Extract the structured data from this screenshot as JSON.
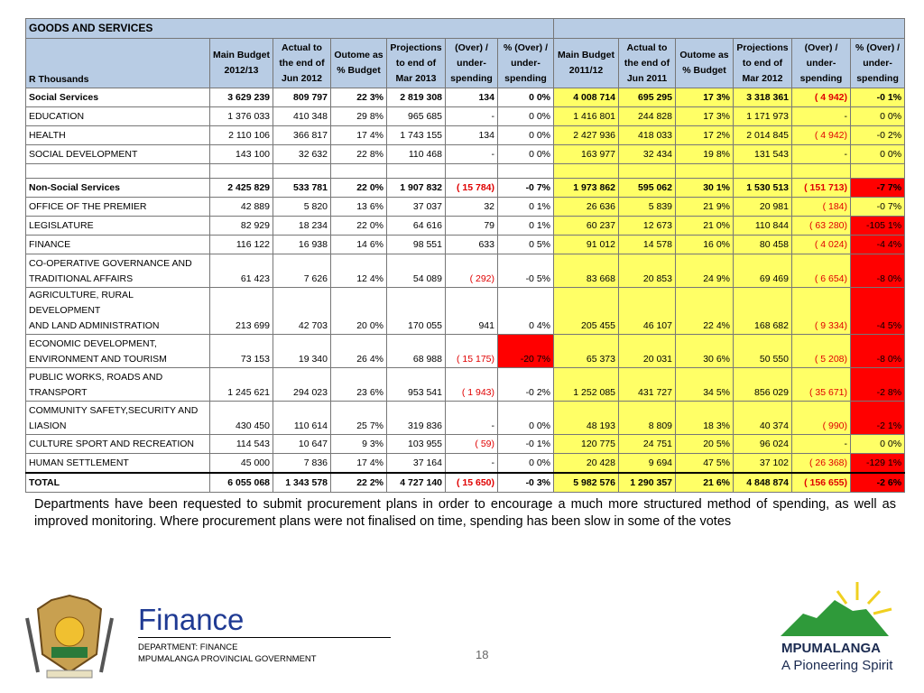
{
  "table": {
    "title": "GOODS AND SERVICES",
    "row_header_label": "R Thousands",
    "headers": [
      "Main Budget\n2012/13",
      "Actual to\nthe end of\nJun 2012",
      "Outome as\n% Budget",
      "Projections\nto end of\nMar 2013",
      "(Over) /\nunder-\nspending",
      "% (Over) /\nunder-\nspending",
      "Main Budget\n2011/12",
      "Actual to\nthe end of\nJun 2011",
      "Outome as\n% Budget",
      "Projections\nto end of\nMar 2012",
      "(Over) /\nunder-\nspending",
      "% (Over) /\nunder-\nspending"
    ],
    "rows": [
      {
        "label": "Social Services",
        "cells": [
          "3 629 239",
          "809 797",
          "22 3%",
          "2 819 308",
          "134",
          "0 0%",
          "4 008 714",
          "695 295",
          "17 3%",
          "3 318 361",
          "( 4 942)",
          "-0 1%"
        ]
      },
      {
        "label": " EDUCATION",
        "cells": [
          "1 376 033",
          "410 348",
          "29 8%",
          "965 685",
          "-",
          "0 0%",
          "1 416 801",
          "244 828",
          "17 3%",
          "1 171 973",
          "-",
          "0 0%"
        ]
      },
      {
        "label": " HEALTH",
        "cells": [
          "2 110 106",
          "366 817",
          "17 4%",
          "1 743 155",
          "134",
          "0 0%",
          "2 427 936",
          "418 033",
          "17 2%",
          "2 014 845",
          "( 4 942)",
          "-0 2%"
        ]
      },
      {
        "label": " SOCIAL DEVELOPMENT",
        "cells": [
          "143 100",
          "32 632",
          "22 8%",
          "110 468",
          "-",
          "0 0%",
          "163 977",
          "32 434",
          "19 8%",
          "131 543",
          "-",
          "0 0%"
        ]
      },
      {
        "label": "Non-Social Services",
        "cells": [
          "2 425 829",
          "533 781",
          "22 0%",
          "1 907 832",
          "( 15 784)",
          "-0 7%",
          "1 973 862",
          "595 062",
          "30 1%",
          "1 530 513",
          "( 151 713)",
          "-7 7%"
        ]
      },
      {
        "label": " OFFICE OF THE PREMIER",
        "cells": [
          "42 889",
          "5 820",
          "13 6%",
          "37 037",
          "32",
          "0 1%",
          "26 636",
          "5 839",
          "21 9%",
          "20 981",
          "( 184)",
          "-0 7%"
        ]
      },
      {
        "label": "LEGISLATURE",
        "cells": [
          "82 929",
          "18 234",
          "22 0%",
          "64 616",
          "79",
          "0 1%",
          "60 237",
          "12 673",
          "21 0%",
          "110 844",
          "( 63 280)",
          "-105 1%"
        ]
      },
      {
        "label": " FINANCE",
        "cells": [
          "116 122",
          "16 938",
          "14 6%",
          "98 551",
          "633",
          "0 5%",
          "91 012",
          "14 578",
          "16 0%",
          "80 458",
          "( 4 024)",
          "-4 4%"
        ]
      },
      {
        "label": " CO-OPERATIVE GOVERNANCE AND\nTRADITIONAL AFFAIRS",
        "cells": [
          "61 423",
          "7 626",
          "12 4%",
          "54 089",
          "(  292)",
          "-0 5%",
          "83 668",
          "20 853",
          "24 9%",
          "69 469",
          "( 6 654)",
          "-8 0%"
        ]
      },
      {
        "label": " AGRICULTURE, RURAL DEVELOPMENT\nAND LAND ADMINISTRATION",
        "cells": [
          "213 699",
          "42 703",
          "20 0%",
          "170 055",
          "941",
          "0 4%",
          "205 455",
          "46 107",
          "22 4%",
          "168 682",
          "( 9 334)",
          "-4 5%"
        ]
      },
      {
        "label": " ECONOMIC DEVELOPMENT,\nENVIRONMENT AND TOURISM",
        "cells": [
          "73 153",
          "19 340",
          "26 4%",
          "68 988",
          "( 15 175)",
          "-20 7%",
          "65 373",
          "20 031",
          "30 6%",
          "50 550",
          "( 5 208)",
          "-8 0%"
        ]
      },
      {
        "label": " PUBLIC WORKS, ROADS AND\nTRANSPORT",
        "cells": [
          "1 245 621",
          "294 023",
          "23 6%",
          "953 541",
          "( 1 943)",
          "-0 2%",
          "1 252 085",
          "431 727",
          "34 5%",
          "856 029",
          "( 35 671)",
          "-2 8%"
        ]
      },
      {
        "label": "COMMUNITY SAFETY,SECURITY AND\nLIASION",
        "cells": [
          "430 450",
          "110 614",
          "25 7%",
          "319 836",
          "-",
          "0 0%",
          "48 193",
          "8 809",
          "18 3%",
          "40 374",
          "(  990)",
          "-2 1%"
        ]
      },
      {
        "label": " CULTURE SPORT AND RECREATION",
        "cells": [
          "114 543",
          "10 647",
          "9 3%",
          "103 955",
          "(  59)",
          "-0 1%",
          "120 775",
          "24 751",
          "20 5%",
          "96 024",
          "-",
          "0 0%"
        ]
      },
      {
        "label": " HUMAN SETTLEMENT",
        "cells": [
          "45 000",
          "7 836",
          "17 4%",
          "37 164",
          "-",
          "0 0%",
          "20 428",
          "9 694",
          "47 5%",
          "37 102",
          "( 26 368)",
          "-129 1%"
        ]
      },
      {
        "label": "TOTAL",
        "cells": [
          "6 055 068",
          "1 343 578",
          "22 2%",
          "4 727 140",
          "( 15 650)",
          "-0 3%",
          "5 982 576",
          "1 290 357",
          "21 6%",
          "4 848 874",
          "( 156 655)",
          "-2 6%"
        ]
      }
    ]
  },
  "note": "Departments have been requested to submit procurement plans in order to encourage a much more structured method of spending, as well as improved monitoring. Where procurement plans were not finalised on time, spending has been slow in some of the votes",
  "footer": {
    "brand": "Finance",
    "department": "DEPARTMENT: FINANCE",
    "government": "MPUMALANGA PROVINCIAL GOVERNMENT",
    "page_number": "18",
    "province": "MPUMALANGA",
    "slogan": "A Pioneering Spirit"
  }
}
